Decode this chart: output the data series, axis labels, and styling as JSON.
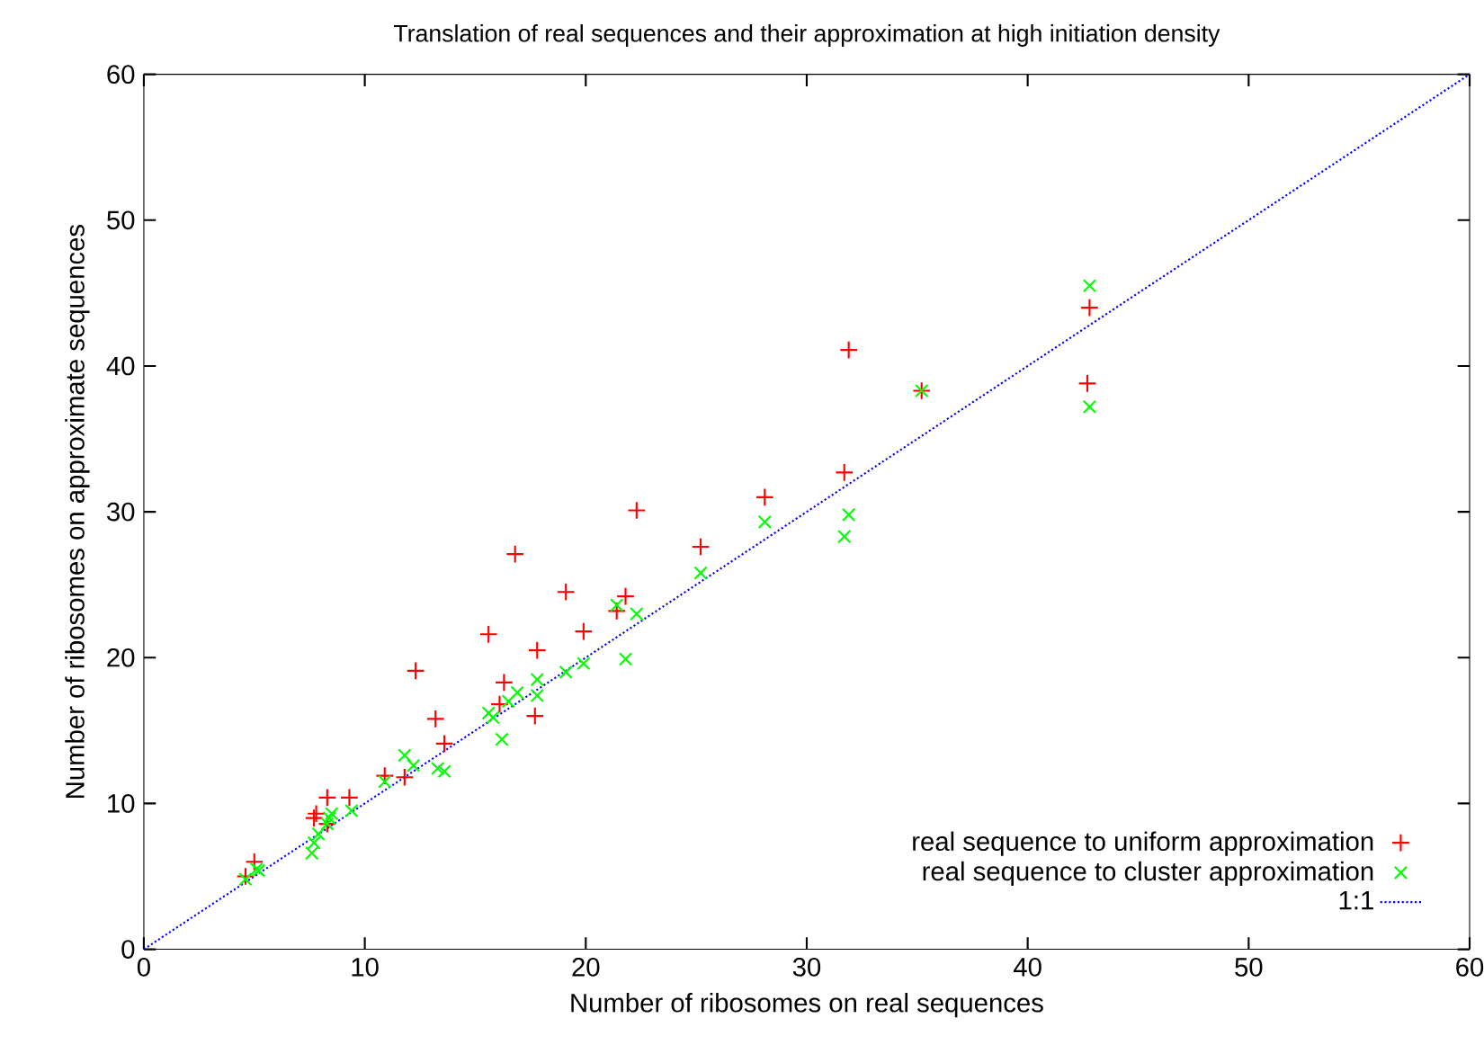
{
  "chart_data": {
    "type": "scatter",
    "title": "Translation of real sequences and their approximation at high initiation density",
    "xlabel": "Number of ribosomes on real sequences",
    "ylabel": "Number of ribosomes on approximate sequences",
    "xlim": [
      0,
      60
    ],
    "ylim": [
      0,
      60
    ],
    "xticks": [
      0,
      10,
      20,
      30,
      40,
      50,
      60
    ],
    "yticks": [
      0,
      10,
      20,
      30,
      40,
      50,
      60
    ],
    "legend": "bottom right",
    "grid": false,
    "series": [
      {
        "name": "real sequence to uniform approximation",
        "color": "#ff0000",
        "marker": "plus",
        "x": [
          4.6,
          5.0,
          7.7,
          7.8,
          8.3,
          8.3,
          9.3,
          10.9,
          11.8,
          12.3,
          13.2,
          13.6,
          15.6,
          16.1,
          16.3,
          16.8,
          17.8,
          17.7,
          19.1,
          19.9,
          21.4,
          21.8,
          22.3,
          25.2,
          28.1,
          31.7,
          31.9,
          35.2,
          42.8,
          42.7
        ],
        "values": [
          5.0,
          6.0,
          9.0,
          9.3,
          10.4,
          8.6,
          10.4,
          11.9,
          11.8,
          19.1,
          15.8,
          14.1,
          21.6,
          16.8,
          18.3,
          27.1,
          20.5,
          16.0,
          24.5,
          21.8,
          23.2,
          24.2,
          30.1,
          27.6,
          31.0,
          32.7,
          41.1,
          38.3,
          44.0,
          38.8
        ]
      },
      {
        "name": "real sequence to cluster approximation",
        "color": "#00ff00",
        "marker": "cross",
        "x": [
          4.6,
          5.1,
          5.2,
          7.6,
          7.7,
          7.9,
          8.3,
          8.4,
          8.5,
          9.4,
          10.9,
          11.8,
          12.2,
          13.3,
          13.6,
          15.6,
          15.8,
          16.2,
          16.5,
          16.9,
          17.8,
          17.8,
          19.1,
          19.9,
          21.4,
          21.8,
          22.3,
          25.2,
          28.1,
          31.7,
          31.9,
          35.2,
          42.8,
          42.8
        ],
        "values": [
          4.8,
          5.5,
          5.4,
          6.6,
          7.3,
          7.9,
          8.6,
          9.0,
          9.3,
          9.5,
          11.5,
          13.3,
          12.6,
          12.4,
          12.2,
          16.2,
          15.9,
          14.4,
          17.0,
          17.6,
          18.5,
          17.4,
          19.0,
          19.6,
          23.6,
          19.9,
          23.0,
          25.8,
          29.3,
          28.3,
          29.8,
          38.3,
          45.5,
          37.2
        ]
      },
      {
        "name": "1:1",
        "type": "line",
        "color": "#0000ff",
        "line_style": "dotted",
        "marker": "none",
        "x": [
          0,
          60
        ],
        "values": [
          0,
          60
        ]
      }
    ]
  }
}
